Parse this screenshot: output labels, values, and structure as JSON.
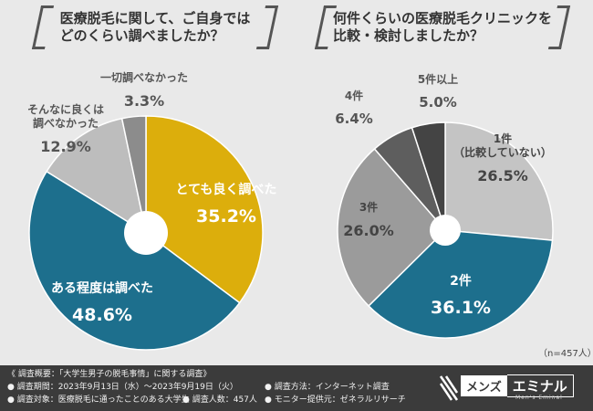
{
  "chart_data": [
    {
      "type": "pie",
      "title": "医療脱毛に関して、ご自身では\nどのくらい調べましたか？",
      "slices": [
        {
          "label": "とても良く調べた",
          "value": 35.2,
          "display": "35.2%",
          "color": "#dcae0c",
          "text_color": "#ffffff"
        },
        {
          "label": "ある程度は調べた",
          "value": 48.6,
          "display": "48.6%",
          "color": "#1d6f8d",
          "text_color": "#ffffff"
        },
        {
          "label": "そんなに良くは\n調べなかった",
          "value": 12.9,
          "display": "12.9%",
          "color": "#bdbdbd",
          "text_color": "#555555"
        },
        {
          "label": "一切調べなかった",
          "value": 3.3,
          "display": "3.3%",
          "color": "#8c8c8c",
          "text_color": "#555555"
        }
      ]
    },
    {
      "type": "pie",
      "title": "何件くらいの医療脱毛クリニックを\n比較・検討しましたか？",
      "slices": [
        {
          "label": "1件\n（比較していない）",
          "value": 26.5,
          "display": "26.5%",
          "color": "#c4c4c4",
          "text_color": "#444444"
        },
        {
          "label": "2件",
          "value": 36.1,
          "display": "36.1%",
          "color": "#1d6f8d",
          "text_color": "#ffffff"
        },
        {
          "label": "3件",
          "value": 26.0,
          "display": "26.0%",
          "color": "#9b9b9b",
          "text_color": "#444444"
        },
        {
          "label": "4件",
          "value": 6.4,
          "display": "6.4%",
          "color": "#5e5e5e",
          "text_color": "#555555"
        },
        {
          "label": "5件以上",
          "value": 5.0,
          "display": "5.0%",
          "color": "#444444",
          "text_color": "#555555"
        }
      ],
      "note": "（n=457人）"
    }
  ],
  "footer": {
    "line1": "《 調査概要：「大学生男子の脱毛事情」に関する調査》",
    "line2a": "● 調査期間：2023年9月13日（水）〜2023年9月19日（火）",
    "line2b": "● 調査方法：インターネット調査",
    "line3a": "● 調査対象：医療脱毛に通ったことのある大学生",
    "line3b": "● 調査人数：457人",
    "line3c": "● モニター提供元：ゼネラルリサーチ"
  },
  "brand": {
    "part_a": "メンズ",
    "part_b": "エミナル",
    "sub": "Men's Eminal"
  }
}
